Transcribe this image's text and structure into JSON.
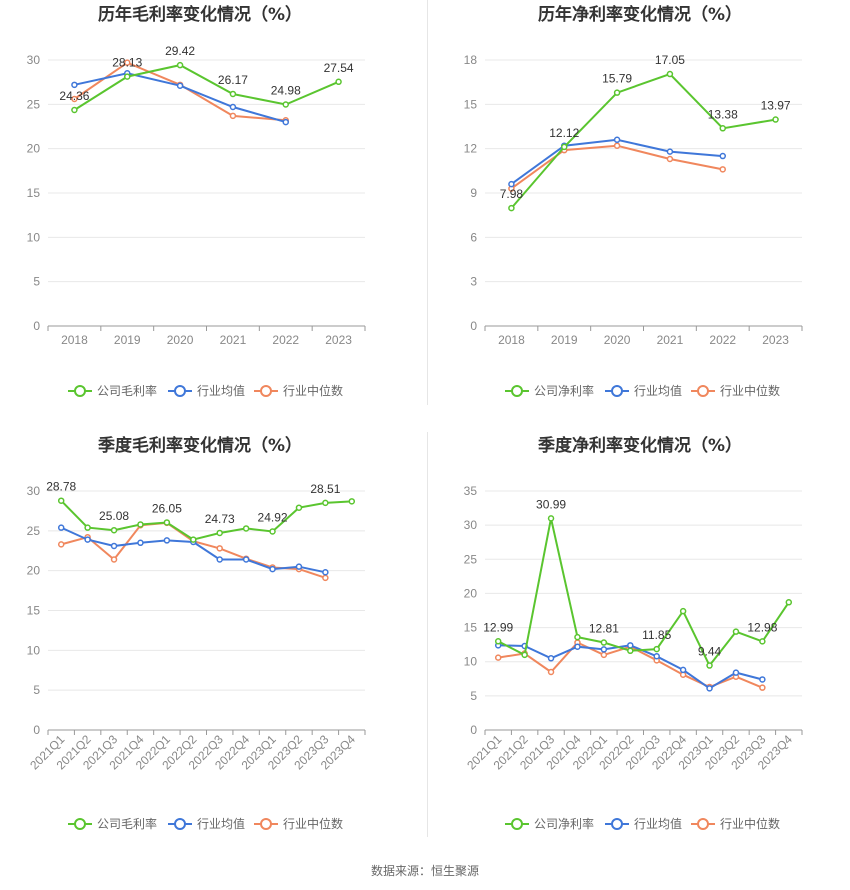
{
  "source_text": "数据来源：恒生聚源",
  "colors": {
    "company": "#5ac52f",
    "avg": "#3f77d9",
    "median": "#f0875d",
    "grid": "#e8e8e8",
    "axis": "#999999"
  },
  "legend_labels": {
    "gross": [
      "公司毛利率",
      "行业均值",
      "行业中位数"
    ],
    "net": [
      "公司净利率",
      "行业均值",
      "行业中位数"
    ]
  },
  "chart_data": [
    {
      "type": "line",
      "title": "历年毛利率变化情况（%）",
      "categories": [
        "2018",
        "2019",
        "2020",
        "2021",
        "2022",
        "2023"
      ],
      "ylim": [
        0,
        30
      ],
      "yticks": [
        0,
        5,
        10,
        15,
        20,
        25,
        30
      ],
      "grid": true,
      "legend": "bottom",
      "series": [
        {
          "name": "公司毛利率",
          "role": "company",
          "values": [
            24.36,
            28.13,
            29.42,
            26.17,
            24.98,
            27.54
          ],
          "labels": [
            "24.36",
            "28.13",
            "29.42",
            "26.17",
            "24.98",
            "27.54"
          ]
        },
        {
          "name": "行业均值",
          "role": "avg",
          "values": [
            27.2,
            28.5,
            27.1,
            24.7,
            23.0,
            null
          ]
        },
        {
          "name": "行业中位数",
          "role": "median",
          "values": [
            25.6,
            29.7,
            27.2,
            23.7,
            23.2,
            null
          ]
        }
      ]
    },
    {
      "type": "line",
      "title": "历年净利率变化情况（%）",
      "categories": [
        "2018",
        "2019",
        "2020",
        "2021",
        "2022",
        "2023"
      ],
      "ylim": [
        0,
        18
      ],
      "yticks": [
        0,
        3,
        6,
        9,
        12,
        15,
        18
      ],
      "grid": true,
      "legend": "bottom",
      "series": [
        {
          "name": "公司净利率",
          "role": "company",
          "values": [
            7.98,
            12.12,
            15.79,
            17.05,
            13.38,
            13.97
          ],
          "labels": [
            "7.98",
            "12.12",
            "15.79",
            "17.05",
            "13.38",
            "13.97"
          ]
        },
        {
          "name": "行业均值",
          "role": "avg",
          "values": [
            9.6,
            12.2,
            12.6,
            11.8,
            11.5,
            null
          ]
        },
        {
          "name": "行业中位数",
          "role": "median",
          "values": [
            9.3,
            11.9,
            12.2,
            11.3,
            10.6,
            null
          ]
        }
      ]
    },
    {
      "type": "line",
      "title": "季度毛利率变化情况（%）",
      "categories": [
        "2021Q1",
        "2021Q2",
        "2021Q3",
        "2021Q4",
        "2022Q1",
        "2022Q2",
        "2022Q3",
        "2022Q4",
        "2023Q1",
        "2023Q2",
        "2023Q3",
        "2023Q4"
      ],
      "ylim": [
        0,
        30
      ],
      "yticks": [
        0,
        5,
        10,
        15,
        20,
        25,
        30
      ],
      "grid": true,
      "legend": "bottom",
      "series": [
        {
          "name": "公司毛利率",
          "role": "company",
          "values": [
            28.78,
            25.4,
            25.08,
            25.8,
            26.05,
            23.9,
            24.73,
            25.3,
            24.92,
            27.9,
            28.51,
            28.7
          ],
          "labels": [
            "28.78",
            "",
            "25.08",
            "",
            "26.05",
            "",
            "24.73",
            "",
            "24.92",
            "",
            "28.51",
            ""
          ]
        },
        {
          "name": "行业均值",
          "role": "avg",
          "values": [
            25.4,
            23.9,
            23.1,
            23.5,
            23.8,
            23.6,
            21.4,
            21.4,
            20.2,
            20.5,
            19.8,
            null
          ]
        },
        {
          "name": "行业中位数",
          "role": "median",
          "values": [
            23.3,
            24.2,
            21.4,
            25.7,
            26.0,
            23.7,
            22.8,
            21.5,
            20.4,
            20.2,
            19.1,
            null
          ]
        }
      ]
    },
    {
      "type": "line",
      "title": "季度净利率变化情况（%）",
      "categories": [
        "2021Q1",
        "2021Q2",
        "2021Q3",
        "2021Q4",
        "2022Q1",
        "2022Q2",
        "2022Q3",
        "2022Q4",
        "2023Q1",
        "2023Q2",
        "2023Q3",
        "2023Q4"
      ],
      "ylim": [
        0,
        35
      ],
      "yticks": [
        0,
        5,
        10,
        15,
        20,
        25,
        30,
        35
      ],
      "grid": true,
      "legend": "bottom",
      "series": [
        {
          "name": "公司净利率",
          "role": "company",
          "values": [
            12.99,
            11.0,
            30.99,
            13.6,
            12.81,
            11.6,
            11.85,
            17.4,
            9.44,
            14.4,
            12.98,
            18.7
          ],
          "labels": [
            "12.99",
            "",
            "30.99",
            "",
            "12.81",
            "",
            "11.85",
            "",
            "9.44",
            "",
            "12.98",
            ""
          ]
        },
        {
          "name": "行业均值",
          "role": "avg",
          "values": [
            12.4,
            12.3,
            10.5,
            12.2,
            11.8,
            12.4,
            10.8,
            8.8,
            6.1,
            8.4,
            7.4,
            null
          ]
        },
        {
          "name": "行业中位数",
          "role": "median",
          "values": [
            10.6,
            11.2,
            8.5,
            12.8,
            11.0,
            12.2,
            10.2,
            8.1,
            6.3,
            7.8,
            6.2,
            null
          ]
        }
      ]
    }
  ]
}
